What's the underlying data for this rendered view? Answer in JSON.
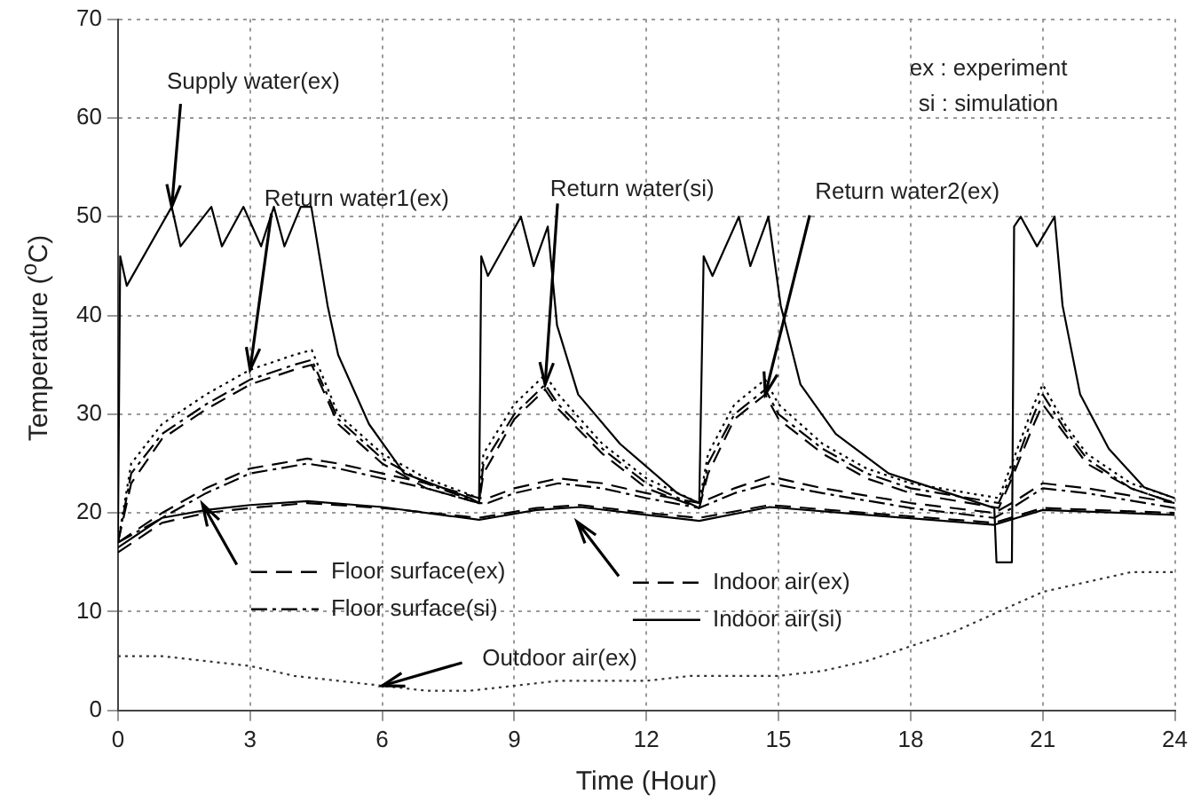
{
  "chart_data": {
    "type": "line",
    "xlabel": "Time (Hour)",
    "ylabel": "Temperature ($^{o}$C)",
    "xlim": [
      0,
      24
    ],
    "xticks": [
      0,
      3,
      6,
      9,
      12,
      15,
      18,
      21,
      24
    ],
    "ylim": [
      0,
      70
    ],
    "yticks": [
      0,
      10,
      20,
      30,
      40,
      50,
      60,
      70
    ],
    "grid": true,
    "legend": "bottom",
    "marker": "none",
    "annotations": [
      {
        "text": "Supply water(ex)",
        "x": 1.22,
        "y": 51
      },
      {
        "text": "Return water1(ex)",
        "x": 3,
        "y": 34.5
      },
      {
        "text": "Return water(si)",
        "x": 9.7,
        "y": 33
      },
      {
        "text": "Return water2(ex)",
        "x": 14.7,
        "y": 32
      },
      {
        "text": "Outdoor air(ex)",
        "x": 6,
        "y": 2.5
      },
      "ex : experiment",
      "si : simulation"
    ],
    "series": [
      {
        "color": "#000000",
        "line_style": "solid",
        "x": [
          0,
          0.05,
          0.2,
          1.22,
          1.42,
          2.12,
          2.36,
          2.85,
          3.25,
          3.54,
          3.78,
          4.15,
          4.39,
          4.76,
          5,
          5.7,
          6.5,
          8,
          8.2,
          8.25,
          8.4,
          9.15,
          9.44,
          9.76,
          9.97,
          10.45,
          11.4,
          12.7,
          13.2,
          13.3,
          13.5,
          14.1,
          14.36,
          14.77,
          15.05,
          15.5,
          16.3,
          17.5,
          19.9,
          19.95,
          20.3,
          20.35,
          20.5,
          20.87,
          21.27,
          21.45,
          21.85,
          22.5,
          23.3,
          24
        ],
        "values": [
          18,
          46,
          43,
          51,
          47,
          51,
          47,
          51,
          47,
          51,
          47,
          51,
          51,
          41,
          36,
          29,
          24,
          21.5,
          21,
          46,
          44,
          50,
          45,
          49,
          39,
          32,
          27,
          22,
          21,
          46,
          44,
          50,
          45,
          50,
          41,
          33,
          28,
          24,
          20.5,
          15,
          15,
          49,
          50,
          47,
          50,
          41,
          32,
          26.5,
          22.6,
          21.5
        ]
      },
      {
        "color": "#000000",
        "line_style": "dotted",
        "x": [
          0,
          0.3,
          1,
          2,
          3,
          4,
          4.4,
          5,
          6,
          7,
          8.2,
          8.3,
          9,
          9.7,
          10,
          11,
          12,
          13.2,
          13.4,
          14,
          14.7,
          15,
          16,
          17,
          18,
          20,
          20.3,
          20.8,
          21,
          21.5,
          22,
          23,
          24
        ],
        "values": [
          17,
          25,
          29,
          32,
          34.5,
          36,
          36.5,
          30,
          26,
          23.5,
          21.5,
          26,
          31,
          34,
          32,
          27,
          23.5,
          21,
          26,
          31,
          33.5,
          31,
          27,
          24.5,
          23,
          21.5,
          25,
          31,
          33,
          29,
          26,
          23,
          21.5
        ]
      },
      {
        "color": "#000000",
        "line_style": "dashdot",
        "x": [
          0,
          0.3,
          1,
          2,
          3,
          4,
          4.4,
          5,
          6,
          7,
          8.2,
          8.3,
          9,
          9.7,
          10,
          11,
          12,
          13.2,
          13.4,
          14,
          14.7,
          15,
          16,
          17,
          18,
          20,
          20.3,
          20.8,
          21,
          21.5,
          22,
          23,
          24
        ],
        "values": [
          17,
          24,
          28,
          31,
          33.5,
          35,
          35.5,
          29.5,
          25.5,
          23,
          21,
          25,
          30,
          33,
          31,
          26.5,
          23,
          20.5,
          25,
          30,
          32.5,
          30,
          26.5,
          24,
          22.5,
          21,
          24,
          30,
          32,
          28.5,
          25.5,
          22.5,
          21
        ]
      },
      {
        "color": "#000000",
        "line_style": "dashed",
        "x": [
          0,
          0.3,
          1,
          2,
          3,
          4,
          4.4,
          5,
          6,
          7,
          8.2,
          8.3,
          9,
          9.7,
          10,
          11,
          12,
          13.2,
          13.4,
          14,
          14.7,
          15,
          16,
          17,
          18,
          20,
          20.3,
          20.8,
          21,
          21.5,
          22,
          23,
          24
        ],
        "values": [
          17,
          23,
          27.5,
          30.5,
          33,
          34.5,
          35,
          29,
          25,
          22.5,
          21,
          24,
          29.5,
          32.5,
          30.5,
          26,
          22.5,
          20.5,
          24,
          29.5,
          32,
          29.5,
          26,
          23.5,
          22,
          20.5,
          23.5,
          29,
          31,
          28,
          25,
          22.5,
          21
        ]
      },
      {
        "name": "Floor surface(ex)",
        "color": "#000000",
        "line_style": "dashed",
        "x": [
          0,
          1,
          2,
          3,
          4.3,
          5,
          6,
          7,
          8.2,
          8.4,
          9,
          10,
          11,
          12,
          13.2,
          14,
          14.8,
          16,
          18,
          19.9,
          20.3,
          21,
          22,
          24
        ],
        "values": [
          17,
          20,
          22.5,
          24.5,
          25.5,
          25,
          24,
          23,
          21.5,
          21.5,
          22.5,
          23.5,
          23,
          22,
          21,
          22.5,
          23.7,
          22.5,
          21,
          20,
          21,
          23,
          22.5,
          21
        ]
      },
      {
        "name": "Floor surface(si)",
        "color": "#000000",
        "line_style": "dashdot",
        "x": [
          0,
          1,
          2,
          3,
          4.3,
          5,
          6,
          7,
          8.2,
          8.4,
          9,
          10,
          11,
          12,
          13.2,
          14,
          14.8,
          16,
          18,
          19.9,
          20.3,
          21,
          22,
          24
        ],
        "values": [
          17,
          19.5,
          22,
          24,
          25,
          24.5,
          23.5,
          22.5,
          21,
          21,
          22,
          23,
          22.5,
          21.5,
          20.5,
          22,
          23,
          22,
          20.5,
          19.5,
          20.5,
          22.5,
          22,
          20.5
        ]
      },
      {
        "name": "Indoor air(ex)",
        "color": "#000000",
        "line_style": "dashed",
        "x": [
          0,
          1,
          2,
          3,
          4.3,
          6,
          8.2,
          9.5,
          10.5,
          12,
          13.2,
          14.8,
          17,
          19.9,
          21,
          24
        ],
        "values": [
          16,
          19,
          20,
          20.5,
          21,
          20.5,
          19.5,
          20.5,
          20.8,
          20,
          19.5,
          20.8,
          20,
          19,
          20.5,
          20
        ]
      },
      {
        "name": "Indoor air(si)",
        "color": "#000000",
        "line_style": "solid",
        "x": [
          0,
          1,
          2,
          3,
          4.3,
          6,
          8.2,
          9.5,
          10.5,
          12,
          13.2,
          14.8,
          17,
          19.9,
          21,
          24
        ],
        "values": [
          16.5,
          19.5,
          20.3,
          20.8,
          21.2,
          20.6,
          19.3,
          20.3,
          20.6,
          19.8,
          19.2,
          20.6,
          19.8,
          18.8,
          20.3,
          19.8
        ]
      },
      {
        "color": "#333333",
        "line_style": "dotted",
        "x": [
          0,
          1,
          2,
          3,
          4,
          5,
          6,
          7,
          8,
          9,
          10,
          11,
          12,
          13,
          14,
          15,
          16,
          17,
          18,
          19,
          20,
          21,
          22,
          23,
          24
        ],
        "values": [
          5.5,
          5.5,
          5,
          4.5,
          3.5,
          3,
          2.5,
          2,
          2,
          2.5,
          3,
          3,
          3,
          3.5,
          3.5,
          3.5,
          4,
          5,
          6.5,
          8,
          10,
          12,
          13,
          14,
          14
        ]
      }
    ]
  }
}
